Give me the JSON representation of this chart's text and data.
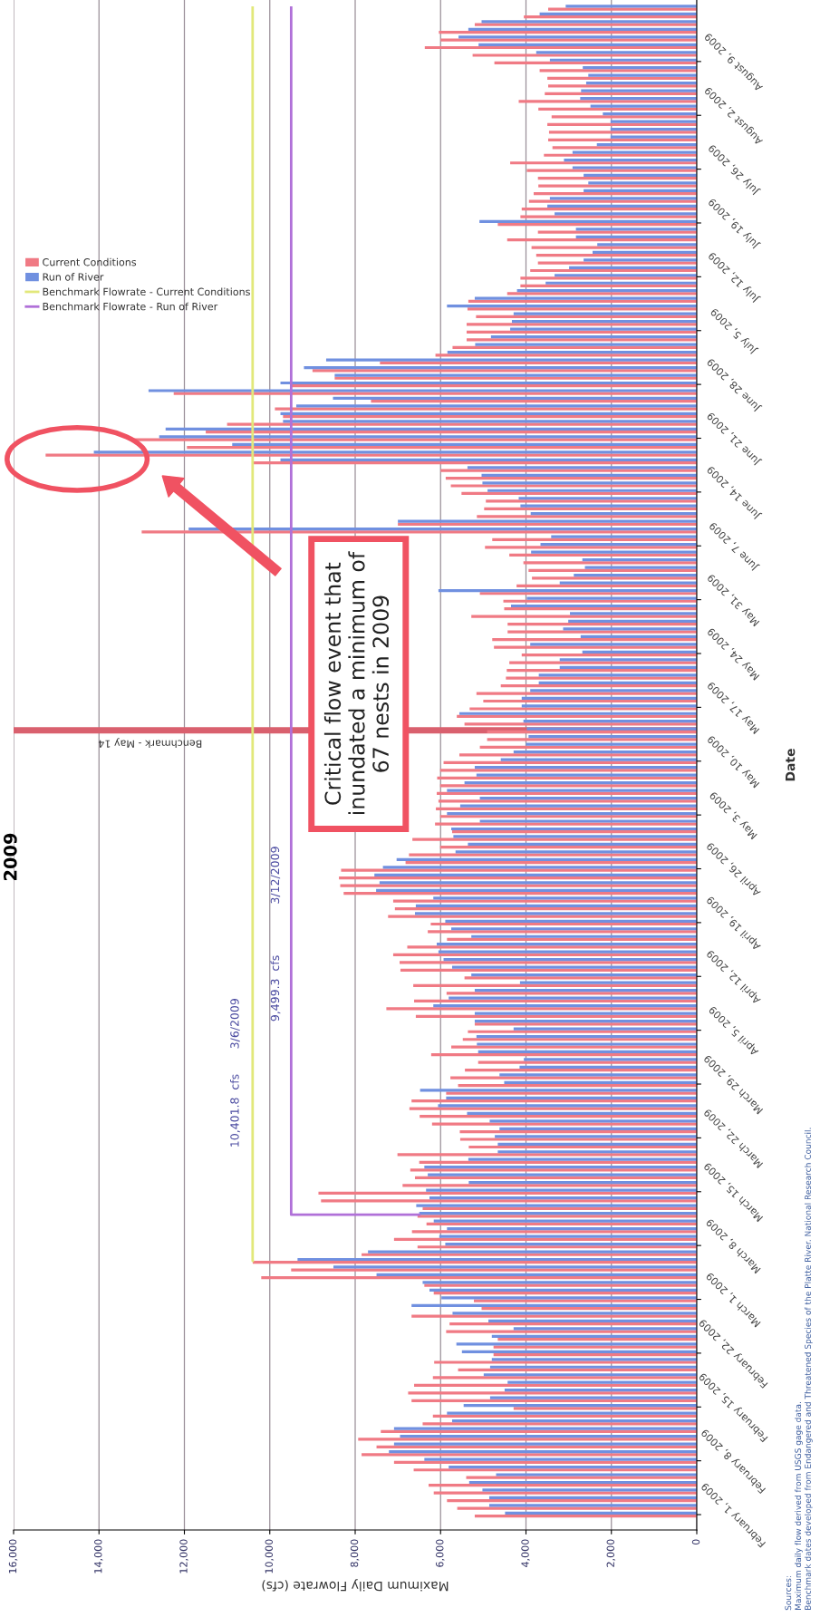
{
  "chart_data": {
    "type": "bar",
    "orientation": "horizontal",
    "title": "2009",
    "xlabel": "Maximum Daily Flowrate (cfs)",
    "ylabel": "Date",
    "x": [
      "2009-02-01",
      "2009-02-02",
      "2009-02-03",
      "2009-02-04",
      "2009-02-05",
      "2009-02-06",
      "2009-02-07",
      "2009-02-08",
      "2009-02-09",
      "2009-02-10",
      "2009-02-11",
      "2009-02-12",
      "2009-02-13",
      "2009-02-14",
      "2009-02-15",
      "2009-02-16",
      "2009-02-17",
      "2009-02-18",
      "2009-02-19",
      "2009-02-20",
      "2009-02-21",
      "2009-02-22",
      "2009-02-23",
      "2009-02-24",
      "2009-02-25",
      "2009-02-26",
      "2009-02-27",
      "2009-02-28",
      "2009-03-01",
      "2009-03-02",
      "2009-03-03",
      "2009-03-04",
      "2009-03-05",
      "2009-03-06",
      "2009-03-07",
      "2009-03-08",
      "2009-03-09",
      "2009-03-10",
      "2009-03-11",
      "2009-03-12",
      "2009-03-13",
      "2009-03-14",
      "2009-03-15",
      "2009-03-16",
      "2009-03-17",
      "2009-03-18",
      "2009-03-19",
      "2009-03-20",
      "2009-03-21",
      "2009-03-22",
      "2009-03-23",
      "2009-03-24",
      "2009-03-25",
      "2009-03-26",
      "2009-03-27",
      "2009-03-28",
      "2009-03-29",
      "2009-03-30",
      "2009-03-31",
      "2009-04-01",
      "2009-04-02",
      "2009-04-03",
      "2009-04-04",
      "2009-04-05",
      "2009-04-06",
      "2009-04-07",
      "2009-04-08",
      "2009-04-09",
      "2009-04-10",
      "2009-04-11",
      "2009-04-12",
      "2009-04-13",
      "2009-04-14",
      "2009-04-15",
      "2009-04-16",
      "2009-04-17",
      "2009-04-18",
      "2009-04-19",
      "2009-04-20",
      "2009-04-21",
      "2009-04-22",
      "2009-04-23",
      "2009-04-24",
      "2009-04-25",
      "2009-04-26",
      "2009-04-27",
      "2009-04-28",
      "2009-04-29",
      "2009-04-30",
      "2009-05-01",
      "2009-05-02",
      "2009-05-03",
      "2009-05-04",
      "2009-05-05",
      "2009-05-06",
      "2009-05-07",
      "2009-05-08",
      "2009-05-09",
      "2009-05-10",
      "2009-05-11",
      "2009-05-12",
      "2009-05-13",
      "2009-05-14",
      "2009-05-15",
      "2009-05-16",
      "2009-05-17",
      "2009-05-18",
      "2009-05-19",
      "2009-05-20",
      "2009-05-21",
      "2009-05-22",
      "2009-05-23",
      "2009-05-24",
      "2009-05-25",
      "2009-05-26",
      "2009-05-27",
      "2009-05-28",
      "2009-05-29",
      "2009-05-30",
      "2009-05-31",
      "2009-06-01",
      "2009-06-02",
      "2009-06-03",
      "2009-06-04",
      "2009-06-05",
      "2009-06-06",
      "2009-06-07",
      "2009-06-08",
      "2009-06-09",
      "2009-06-10",
      "2009-06-11",
      "2009-06-12",
      "2009-06-13",
      "2009-06-14",
      "2009-06-15",
      "2009-06-16",
      "2009-06-17",
      "2009-06-18",
      "2009-06-19",
      "2009-06-20",
      "2009-06-21",
      "2009-06-22",
      "2009-06-23",
      "2009-06-24",
      "2009-06-25",
      "2009-06-26",
      "2009-06-27",
      "2009-06-28",
      "2009-06-29",
      "2009-06-30",
      "2009-07-01",
      "2009-07-02",
      "2009-07-03",
      "2009-07-04",
      "2009-07-05",
      "2009-07-06",
      "2009-07-07",
      "2009-07-08",
      "2009-07-09",
      "2009-07-10",
      "2009-07-11",
      "2009-07-12",
      "2009-07-13",
      "2009-07-14",
      "2009-07-15",
      "2009-07-16",
      "2009-07-17",
      "2009-07-18",
      "2009-07-19",
      "2009-07-20",
      "2009-07-21",
      "2009-07-22",
      "2009-07-23",
      "2009-07-24",
      "2009-07-25",
      "2009-07-26",
      "2009-07-27",
      "2009-07-28",
      "2009-07-29",
      "2009-07-30",
      "2009-07-31",
      "2009-08-01",
      "2009-08-02",
      "2009-08-03",
      "2009-08-04",
      "2009-08-05",
      "2009-08-06",
      "2009-08-07",
      "2009-08-08",
      "2009-08-09",
      "2009-08-10",
      "2009-08-11",
      "2009-08-12",
      "2009-08-13",
      "2009-08-14",
      "2009-08-15",
      "2009-08-16"
    ],
    "series": [
      {
        "name": "Current Conditions",
        "color": "#f07a84",
        "values": [
          5200,
          5610,
          5850,
          6160,
          6280,
          5400,
          6630,
          7090,
          7850,
          7500,
          7930,
          7400,
          6420,
          6180,
          4290,
          6680,
          6760,
          6620,
          6180,
          5590,
          6150,
          4760,
          4760,
          4660,
          5870,
          5790,
          6680,
          5040,
          5220,
          6160,
          6380,
          10200,
          9500,
          10400,
          7850,
          6540,
          7090,
          6670,
          6330,
          6540,
          6420,
          8800,
          8860,
          6890,
          6600,
          6710,
          6500,
          7010,
          5340,
          5540,
          5550,
          6200,
          6490,
          6730,
          6680,
          5870,
          5590,
          5770,
          5430,
          5120,
          6220,
          5750,
          5480,
          5360,
          5200,
          6580,
          7270,
          6620,
          5860,
          6640,
          5440,
          6940,
          6960,
          7110,
          6780,
          5850,
          6300,
          6230,
          7230,
          7070,
          7110,
          8270,
          8350,
          8380,
          8330,
          6820,
          6740,
          6010,
          6660,
          5730,
          6130,
          6010,
          6110,
          6050,
          6090,
          6010,
          6080,
          6010,
          5930,
          5560,
          5080,
          4910,
          4910,
          5440,
          5620,
          5320,
          5000,
          5160,
          4590,
          4470,
          4450,
          4390,
          4100,
          4750,
          4790,
          4430,
          4430,
          5280,
          4510,
          4530,
          5080,
          4220,
          3860,
          3940,
          4060,
          4390,
          4960,
          4790,
          13000,
          7000,
          5150,
          4980,
          4940,
          5510,
          5760,
          5880,
          6000,
          10380,
          15250,
          11940,
          13250,
          11500,
          11000,
          9690,
          9880,
          7630,
          12250,
          9500,
          8480,
          9000,
          7420,
          6120,
          5720,
          5390,
          5390,
          5390,
          5170,
          5370,
          5350,
          4440,
          4130,
          4130,
          3900,
          3720,
          3760,
          3870,
          4440,
          3720,
          4660,
          4130,
          4100,
          3930,
          3820,
          3710,
          3720,
          3980,
          4370,
          3580,
          3380,
          3480,
          3460,
          3500,
          3400,
          3710,
          4170,
          3560,
          3480,
          3500,
          3680,
          4740,
          5250,
          6370,
          6000,
          6040,
          5200,
          4050,
          3480
        ]
      },
      {
        "name": "Run of River",
        "color": "#7090e0",
        "values": [
          4490,
          4860,
          4860,
          5020,
          5330,
          4700,
          5810,
          6380,
          7210,
          7090,
          6950,
          7090,
          5730,
          5850,
          5460,
          4840,
          4500,
          4430,
          4990,
          4840,
          4800,
          5500,
          5630,
          4800,
          4290,
          4880,
          5720,
          6680,
          5980,
          6260,
          6420,
          7500,
          8510,
          9350,
          7700,
          5890,
          6030,
          5850,
          6160,
          6500,
          6570,
          6260,
          6340,
          5340,
          6300,
          6380,
          5350,
          4660,
          4660,
          4730,
          4620,
          4850,
          5380,
          6060,
          5870,
          6480,
          4510,
          4620,
          4150,
          4050,
          5120,
          5150,
          5160,
          4290,
          5200,
          5200,
          6170,
          5810,
          5200,
          4140,
          5280,
          5730,
          5930,
          6050,
          6090,
          5280,
          5750,
          5890,
          6600,
          6580,
          6170,
          7510,
          7430,
          7550,
          7350,
          7030,
          5650,
          5360,
          5700,
          5750,
          5080,
          5850,
          5540,
          5080,
          5850,
          5440,
          5160,
          5200,
          4590,
          4290,
          4000,
          3940,
          3980,
          4060,
          5560,
          4100,
          4100,
          3900,
          3700,
          3700,
          3210,
          3210,
          2680,
          3900,
          2720,
          3130,
          3010,
          2970,
          4350,
          3980,
          6050,
          3210,
          2880,
          2620,
          2680,
          3880,
          3660,
          3410,
          11900,
          7000,
          3890,
          4130,
          4170,
          4900,
          5020,
          5040,
          5370,
          9750,
          14120,
          10880,
          12590,
          12440,
          9690,
          9750,
          9380,
          8520,
          12840,
          9750,
          8480,
          9200,
          8680,
          5840,
          5190,
          4820,
          4370,
          4330,
          4290,
          5850,
          5200,
          4210,
          3540,
          3330,
          2990,
          2650,
          2440,
          2330,
          2830,
          2830,
          5090,
          3330,
          3500,
          3440,
          2650,
          2540,
          2650,
          2910,
          3110,
          2910,
          2340,
          2020,
          2020,
          2020,
          2200,
          2490,
          2730,
          2710,
          2590,
          2540,
          2670,
          3440,
          3760,
          5110,
          5580,
          5350,
          5040,
          3680,
          3070
        ]
      },
      {
        "name": "Benchmark Flowrate - Current Conditions",
        "type": "line",
        "color": "#e2e87a",
        "x": [
          "2009-03-06",
          "2009-03-06",
          "2009-08-16"
        ],
        "values": [
          10400,
          10401.8,
          10401.8
        ]
      },
      {
        "name": "Benchmark Flowrate - Run of River",
        "type": "line",
        "color": "#b070d8",
        "x": [
          "2009-03-12",
          "2009-03-12",
          "2009-08-16"
        ],
        "values": [
          6500,
          9499.3,
          9499.3
        ]
      }
    ],
    "xlim": [
      16000,
      0
    ],
    "ylim": [
      "2009-01-30",
      "2009-08-17"
    ],
    "xticks": [
      {
        "value": 16000,
        "label": "16,000"
      },
      {
        "value": 14000,
        "label": "14,000"
      },
      {
        "value": 12000,
        "label": "12,000"
      },
      {
        "value": 10000,
        "label": "10,000"
      },
      {
        "value": 8000,
        "label": "8,000"
      },
      {
        "value": 6000,
        "label": "6,000"
      },
      {
        "value": 4000,
        "label": "4,000"
      },
      {
        "value": 2000,
        "label": "2,000"
      },
      0
    ],
    "yticks": [
      {
        "value": "2009-02-01",
        "label": "February 1, 2009"
      },
      {
        "value": "2009-02-08",
        "label": "February 8, 2009"
      },
      {
        "value": "2009-02-15",
        "label": "February 15, 2009"
      },
      {
        "value": "2009-02-22",
        "label": "February 22, 2009"
      },
      {
        "value": "2009-03-01",
        "label": "March 1, 2009"
      },
      {
        "value": "2009-03-08",
        "label": "March 8, 2009"
      },
      {
        "value": "2009-03-15",
        "label": "March 15, 2009"
      },
      {
        "value": "2009-03-22",
        "label": "March 22, 2009"
      },
      {
        "value": "2009-03-29",
        "label": "March 29, 2009"
      },
      {
        "value": "2009-04-05",
        "label": "April 5, 2009"
      },
      {
        "value": "2009-04-12",
        "label": "April 12, 2009"
      },
      {
        "value": "2009-04-19",
        "label": "April 19, 2009"
      },
      {
        "value": "2009-04-26",
        "label": "April 26, 2009"
      },
      {
        "value": "2009-05-03",
        "label": "May 3, 2009"
      },
      {
        "value": "2009-05-10",
        "label": "May 10, 2009"
      },
      {
        "value": "2009-05-17",
        "label": "May 17, 2009"
      },
      {
        "value": "2009-05-24",
        "label": "May 24, 2009"
      },
      {
        "value": "2009-05-31",
        "label": "May 31, 2009"
      },
      {
        "value": "2009-06-07",
        "label": "June 7, 2009"
      },
      {
        "value": "2009-06-14",
        "label": "June 14, 2009"
      },
      {
        "value": "2009-06-21",
        "label": "June 21, 2009"
      },
      {
        "value": "2009-06-28",
        "label": "June 28, 2009"
      },
      {
        "value": "2009-07-05",
        "label": "July 5, 2009"
      },
      {
        "value": "2009-07-12",
        "label": "July 12, 2009"
      },
      {
        "value": "2009-07-19",
        "label": "July 19, 2009"
      },
      {
        "value": "2009-07-26",
        "label": "July 26, 2009"
      },
      {
        "value": "2009-08-02",
        "label": "August 2, 2009"
      },
      {
        "value": "2009-08-09",
        "label": "August 9, 2009"
      }
    ],
    "ref_lines": [
      {
        "axis": "y",
        "value": "2009-05-14",
        "label": "Benchmark - May 14",
        "color": "#d9606e"
      }
    ],
    "annotations": [
      "10,401.8  cfs",
      "3/6/2009",
      "9,499.3  cfs",
      "3/12/2009",
      "Critical flow event that\ninundated a minimum of\n67 nests in 2009",
      "Sources:",
      "Maximum daily flow derived from USGS gage data.",
      "Benchmark dates developed from Endangered and Threatened Species of the Platte River. National Research Council."
    ],
    "grid": "x",
    "legend": "top left"
  }
}
